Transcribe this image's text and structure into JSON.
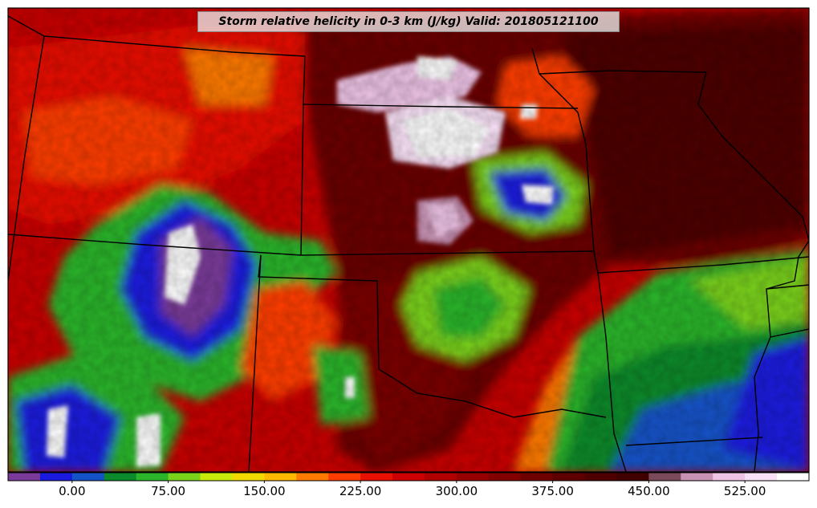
{
  "title": "Storm relative helicity in 0-3 km (J/kg) Valid: 201805121100",
  "colorbar": {
    "min": -50,
    "max": 575,
    "step": 25,
    "colors": [
      "#7a3a99",
      "#1a1adf",
      "#1452c8",
      "#0a8a2a",
      "#2ab52a",
      "#7ad21a",
      "#c8ea0a",
      "#f0d800",
      "#ffb800",
      "#ff7a00",
      "#ff3c00",
      "#e81000",
      "#cc0000",
      "#b00000",
      "#960000",
      "#820000",
      "#6e0000",
      "#5e0000",
      "#4e0000",
      "#400000",
      "#7a4a5a",
      "#c892b4",
      "#eec4e6",
      "#f8e0f6",
      "#ffffff"
    ],
    "tick_labels": [
      "0.00",
      "75.00",
      "150.00",
      "225.00",
      "300.00",
      "375.00",
      "450.00",
      "525.00"
    ],
    "tick_values": [
      0,
      75,
      150,
      225,
      300,
      375,
      450,
      525
    ]
  }
}
